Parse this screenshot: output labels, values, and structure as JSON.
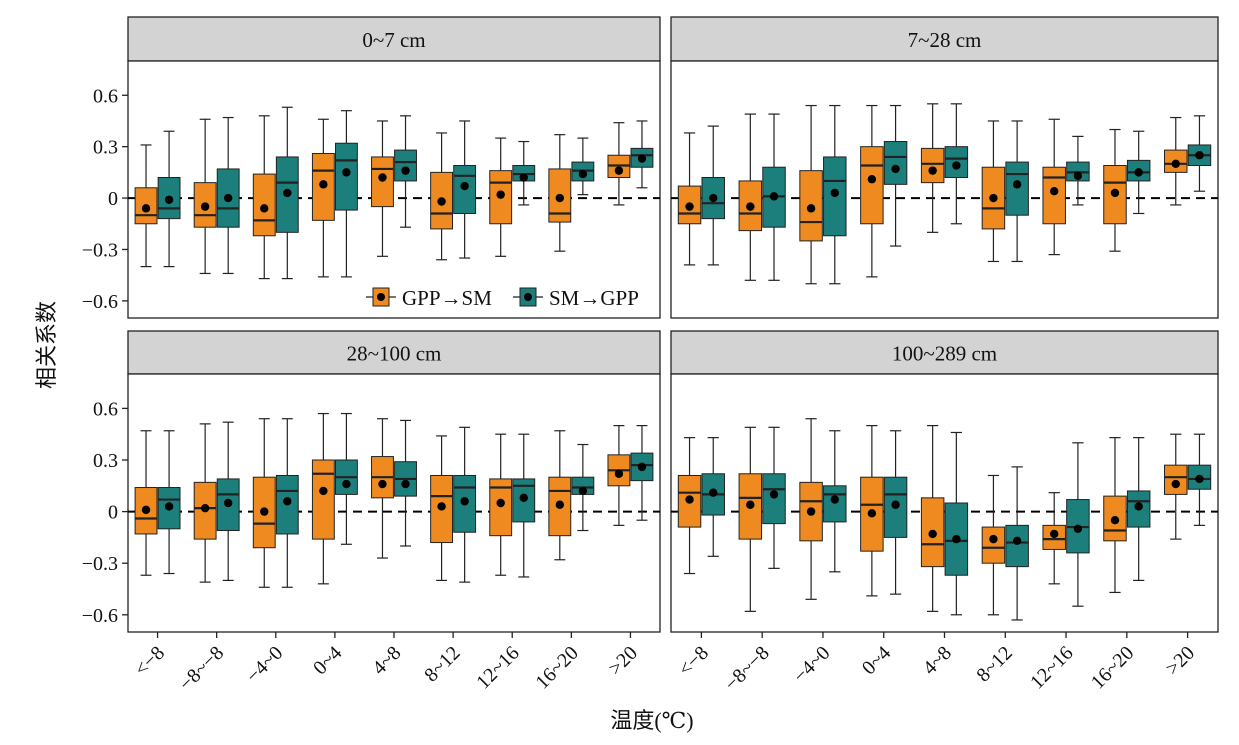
{
  "figure": {
    "ylabel": "相关系数",
    "xlabel": "温度(℃)"
  },
  "legend": {
    "items": [
      {
        "label": "GPP→SM",
        "color": "#ee8a1f"
      },
      {
        "label": "SM→GPP",
        "color": "#1c7f7b"
      }
    ],
    "placement": "inside-bottom-right of top-left panel"
  },
  "colors": {
    "gpp_sm": "#ee8a1f",
    "sm_gpp": "#1c7f7b",
    "strip": "#d3d3d3",
    "zero_line": "#000000"
  },
  "chart_data": [
    {
      "type": "box",
      "title": "0~7 cm",
      "categories": [
        "<−8",
        "−8~−8",
        "−4~0",
        "0~4",
        "4~8",
        "8~12",
        "12~16",
        "16~20",
        ">20"
      ],
      "ylim": [
        -0.7,
        0.8
      ],
      "yticks": [
        0.6,
        0.3,
        0,
        -0.3,
        -0.6
      ],
      "ytick_labels": [
        "0.6",
        "0.3",
        "0",
        "−0.3",
        "−0.6"
      ],
      "reference_line": 0,
      "series": [
        {
          "name": "GPP→SM",
          "boxes": [
            {
              "min": -0.4,
              "q1": -0.15,
              "median": -0.1,
              "q3": 0.06,
              "max": 0.31,
              "mean": -0.06
            },
            {
              "min": -0.44,
              "q1": -0.17,
              "median": -0.1,
              "q3": 0.09,
              "max": 0.46,
              "mean": -0.05
            },
            {
              "min": -0.47,
              "q1": -0.22,
              "median": -0.13,
              "q3": 0.14,
              "max": 0.48,
              "mean": -0.06
            },
            {
              "min": -0.46,
              "q1": -0.13,
              "median": 0.16,
              "q3": 0.26,
              "max": 0.46,
              "mean": 0.08
            },
            {
              "min": -0.34,
              "q1": -0.05,
              "median": 0.17,
              "q3": 0.24,
              "max": 0.45,
              "mean": 0.12
            },
            {
              "min": -0.36,
              "q1": -0.18,
              "median": -0.09,
              "q3": 0.15,
              "max": 0.38,
              "mean": -0.02
            },
            {
              "min": -0.34,
              "q1": -0.15,
              "median": 0.09,
              "q3": 0.16,
              "max": 0.35,
              "mean": 0.02
            },
            {
              "min": -0.31,
              "q1": -0.14,
              "median": -0.09,
              "q3": 0.17,
              "max": 0.37,
              "mean": 0.0
            },
            {
              "min": -0.04,
              "q1": 0.12,
              "median": 0.19,
              "q3": 0.25,
              "max": 0.44,
              "mean": 0.16
            }
          ]
        },
        {
          "name": "SM→GPP",
          "boxes": [
            {
              "min": -0.4,
              "q1": -0.12,
              "median": -0.06,
              "q3": 0.12,
              "max": 0.39,
              "mean": -0.01
            },
            {
              "min": -0.44,
              "q1": -0.17,
              "median": -0.06,
              "q3": 0.17,
              "max": 0.47,
              "mean": 0.0
            },
            {
              "min": -0.47,
              "q1": -0.2,
              "median": 0.09,
              "q3": 0.24,
              "max": 0.53,
              "mean": 0.03
            },
            {
              "min": -0.46,
              "q1": -0.07,
              "median": 0.22,
              "q3": 0.32,
              "max": 0.51,
              "mean": 0.15
            },
            {
              "min": -0.17,
              "q1": 0.1,
              "median": 0.21,
              "q3": 0.28,
              "max": 0.48,
              "mean": 0.16
            },
            {
              "min": -0.35,
              "q1": -0.09,
              "median": 0.13,
              "q3": 0.19,
              "max": 0.45,
              "mean": 0.07
            },
            {
              "min": -0.04,
              "q1": 0.1,
              "median": 0.14,
              "q3": 0.19,
              "max": 0.33,
              "mean": 0.12
            },
            {
              "min": 0.02,
              "q1": 0.1,
              "median": 0.16,
              "q3": 0.21,
              "max": 0.35,
              "mean": 0.14
            },
            {
              "min": 0.06,
              "q1": 0.18,
              "median": 0.25,
              "q3": 0.29,
              "max": 0.45,
              "mean": 0.23
            }
          ]
        }
      ]
    },
    {
      "type": "box",
      "title": "7~28 cm",
      "categories": [
        "<−8",
        "−8~−8",
        "−4~0",
        "0~4",
        "4~8",
        "8~12",
        "12~16",
        "16~20",
        ">20"
      ],
      "ylim": [
        -0.7,
        0.8
      ],
      "reference_line": 0,
      "series": [
        {
          "name": "GPP→SM",
          "boxes": [
            {
              "min": -0.39,
              "q1": -0.15,
              "median": -0.09,
              "q3": 0.07,
              "max": 0.38,
              "mean": -0.05
            },
            {
              "min": -0.48,
              "q1": -0.19,
              "median": -0.09,
              "q3": 0.1,
              "max": 0.49,
              "mean": -0.05
            },
            {
              "min": -0.5,
              "q1": -0.25,
              "median": -0.14,
              "q3": 0.16,
              "max": 0.54,
              "mean": -0.06
            },
            {
              "min": -0.46,
              "q1": -0.15,
              "median": 0.19,
              "q3": 0.3,
              "max": 0.54,
              "mean": 0.11
            },
            {
              "min": -0.2,
              "q1": 0.09,
              "median": 0.2,
              "q3": 0.29,
              "max": 0.55,
              "mean": 0.16
            },
            {
              "min": -0.37,
              "q1": -0.18,
              "median": -0.06,
              "q3": 0.18,
              "max": 0.45,
              "mean": 0.0
            },
            {
              "min": -0.33,
              "q1": -0.15,
              "median": 0.12,
              "q3": 0.18,
              "max": 0.46,
              "mean": 0.04
            },
            {
              "min": -0.31,
              "q1": -0.15,
              "median": 0.09,
              "q3": 0.19,
              "max": 0.4,
              "mean": 0.03
            },
            {
              "min": -0.04,
              "q1": 0.15,
              "median": 0.2,
              "q3": 0.28,
              "max": 0.47,
              "mean": 0.2
            }
          ]
        },
        {
          "name": "SM→GPP",
          "boxes": [
            {
              "min": -0.39,
              "q1": -0.12,
              "median": -0.03,
              "q3": 0.12,
              "max": 0.42,
              "mean": 0.0
            },
            {
              "min": -0.48,
              "q1": -0.17,
              "median": 0.01,
              "q3": 0.18,
              "max": 0.49,
              "mean": 0.01
            },
            {
              "min": -0.5,
              "q1": -0.22,
              "median": 0.1,
              "q3": 0.24,
              "max": 0.54,
              "mean": 0.03
            },
            {
              "min": -0.28,
              "q1": 0.08,
              "median": 0.24,
              "q3": 0.33,
              "max": 0.54,
              "mean": 0.17
            },
            {
              "min": -0.15,
              "q1": 0.12,
              "median": 0.23,
              "q3": 0.3,
              "max": 0.55,
              "mean": 0.19
            },
            {
              "min": -0.37,
              "q1": -0.1,
              "median": 0.14,
              "q3": 0.21,
              "max": 0.45,
              "mean": 0.08
            },
            {
              "min": -0.04,
              "q1": 0.1,
              "median": 0.15,
              "q3": 0.21,
              "max": 0.36,
              "mean": 0.13
            },
            {
              "min": -0.09,
              "q1": 0.1,
              "median": 0.15,
              "q3": 0.22,
              "max": 0.39,
              "mean": 0.15
            },
            {
              "min": 0.04,
              "q1": 0.19,
              "median": 0.25,
              "q3": 0.31,
              "max": 0.48,
              "mean": 0.25
            }
          ]
        }
      ]
    },
    {
      "type": "box",
      "title": "28~100 cm",
      "categories": [
        "<−8",
        "−8~−8",
        "−4~0",
        "0~4",
        "4~8",
        "8~12",
        "12~16",
        "16~20",
        ">20"
      ],
      "ylim": [
        -0.7,
        0.8
      ],
      "yticks": [
        0.6,
        0.3,
        0,
        -0.3,
        -0.6
      ],
      "ytick_labels": [
        "0.6",
        "0.3",
        "0",
        "−0.3",
        "−0.6"
      ],
      "reference_line": 0,
      "series": [
        {
          "name": "GPP→SM",
          "boxes": [
            {
              "min": -0.37,
              "q1": -0.13,
              "median": -0.04,
              "q3": 0.14,
              "max": 0.47,
              "mean": 0.01
            },
            {
              "min": -0.41,
              "q1": -0.16,
              "median": 0.02,
              "q3": 0.17,
              "max": 0.51,
              "mean": 0.02
            },
            {
              "min": -0.44,
              "q1": -0.21,
              "median": -0.07,
              "q3": 0.2,
              "max": 0.54,
              "mean": 0.0
            },
            {
              "min": -0.42,
              "q1": -0.16,
              "median": 0.22,
              "q3": 0.3,
              "max": 0.57,
              "mean": 0.12
            },
            {
              "min": -0.27,
              "q1": 0.08,
              "median": 0.2,
              "q3": 0.32,
              "max": 0.54,
              "mean": 0.16
            },
            {
              "min": -0.4,
              "q1": -0.18,
              "median": 0.09,
              "q3": 0.21,
              "max": 0.44,
              "mean": 0.03
            },
            {
              "min": -0.37,
              "q1": -0.14,
              "median": 0.14,
              "q3": 0.19,
              "max": 0.45,
              "mean": 0.05
            },
            {
              "min": -0.28,
              "q1": -0.14,
              "median": 0.12,
              "q3": 0.2,
              "max": 0.47,
              "mean": 0.04
            },
            {
              "min": -0.08,
              "q1": 0.15,
              "median": 0.24,
              "q3": 0.33,
              "max": 0.5,
              "mean": 0.22
            }
          ]
        },
        {
          "name": "SM→GPP",
          "boxes": [
            {
              "min": -0.36,
              "q1": -0.1,
              "median": 0.07,
              "q3": 0.14,
              "max": 0.47,
              "mean": 0.03
            },
            {
              "min": -0.4,
              "q1": -0.11,
              "median": 0.1,
              "q3": 0.19,
              "max": 0.52,
              "mean": 0.05
            },
            {
              "min": -0.44,
              "q1": -0.13,
              "median": 0.12,
              "q3": 0.21,
              "max": 0.54,
              "mean": 0.06
            },
            {
              "min": -0.19,
              "q1": 0.1,
              "median": 0.2,
              "q3": 0.3,
              "max": 0.57,
              "mean": 0.16
            },
            {
              "min": -0.2,
              "q1": 0.09,
              "median": 0.19,
              "q3": 0.29,
              "max": 0.53,
              "mean": 0.16
            },
            {
              "min": -0.41,
              "q1": -0.12,
              "median": 0.14,
              "q3": 0.21,
              "max": 0.49,
              "mean": 0.06
            },
            {
              "min": -0.38,
              "q1": -0.06,
              "median": 0.15,
              "q3": 0.19,
              "max": 0.45,
              "mean": 0.08
            },
            {
              "min": -0.11,
              "q1": 0.1,
              "median": 0.14,
              "q3": 0.2,
              "max": 0.39,
              "mean": 0.12
            },
            {
              "min": -0.05,
              "q1": 0.18,
              "median": 0.27,
              "q3": 0.34,
              "max": 0.5,
              "mean": 0.26
            }
          ]
        }
      ]
    },
    {
      "type": "box",
      "title": "100~289 cm",
      "categories": [
        "<−8",
        "−8~−8",
        "−4~0",
        "0~4",
        "4~8",
        "8~12",
        "12~16",
        "16~20",
        ">20"
      ],
      "ylim": [
        -0.7,
        0.8
      ],
      "reference_line": 0,
      "series": [
        {
          "name": "GPP→SM",
          "boxes": [
            {
              "min": -0.36,
              "q1": -0.09,
              "median": 0.11,
              "q3": 0.21,
              "max": 0.43,
              "mean": 0.07
            },
            {
              "min": -0.58,
              "q1": -0.16,
              "median": 0.08,
              "q3": 0.22,
              "max": 0.49,
              "mean": 0.04
            },
            {
              "min": -0.51,
              "q1": -0.17,
              "median": 0.06,
              "q3": 0.17,
              "max": 0.54,
              "mean": 0.0
            },
            {
              "min": -0.49,
              "q1": -0.23,
              "median": 0.04,
              "q3": 0.2,
              "max": 0.5,
              "mean": -0.01
            },
            {
              "min": -0.58,
              "q1": -0.32,
              "median": -0.19,
              "q3": 0.08,
              "max": 0.5,
              "mean": -0.13
            },
            {
              "min": -0.6,
              "q1": -0.3,
              "median": -0.21,
              "q3": -0.09,
              "max": 0.21,
              "mean": -0.16
            },
            {
              "min": -0.42,
              "q1": -0.22,
              "median": -0.16,
              "q3": -0.08,
              "max": 0.11,
              "mean": -0.13
            },
            {
              "min": -0.47,
              "q1": -0.17,
              "median": -0.11,
              "q3": 0.09,
              "max": 0.43,
              "mean": -0.05
            },
            {
              "min": -0.16,
              "q1": 0.1,
              "median": 0.2,
              "q3": 0.27,
              "max": 0.45,
              "mean": 0.16
            }
          ]
        },
        {
          "name": "SM→GPP",
          "boxes": [
            {
              "min": -0.26,
              "q1": -0.02,
              "median": 0.1,
              "q3": 0.22,
              "max": 0.43,
              "mean": 0.11
            },
            {
              "min": -0.33,
              "q1": -0.07,
              "median": 0.13,
              "q3": 0.22,
              "max": 0.49,
              "mean": 0.1
            },
            {
              "min": -0.35,
              "q1": -0.06,
              "median": 0.1,
              "q3": 0.15,
              "max": 0.47,
              "mean": 0.07
            },
            {
              "min": -0.48,
              "q1": -0.15,
              "median": 0.1,
              "q3": 0.2,
              "max": 0.47,
              "mean": 0.04
            },
            {
              "min": -0.6,
              "q1": -0.37,
              "median": -0.17,
              "q3": 0.05,
              "max": 0.46,
              "mean": -0.16
            },
            {
              "min": -0.63,
              "q1": -0.32,
              "median": -0.18,
              "q3": -0.08,
              "max": 0.26,
              "mean": -0.17
            },
            {
              "min": -0.55,
              "q1": -0.24,
              "median": -0.09,
              "q3": 0.07,
              "max": 0.4,
              "mean": -0.1
            },
            {
              "min": -0.4,
              "q1": -0.09,
              "median": 0.06,
              "q3": 0.12,
              "max": 0.43,
              "mean": 0.03
            },
            {
              "min": -0.08,
              "q1": 0.13,
              "median": 0.19,
              "q3": 0.27,
              "max": 0.45,
              "mean": 0.19
            }
          ]
        }
      ]
    }
  ]
}
